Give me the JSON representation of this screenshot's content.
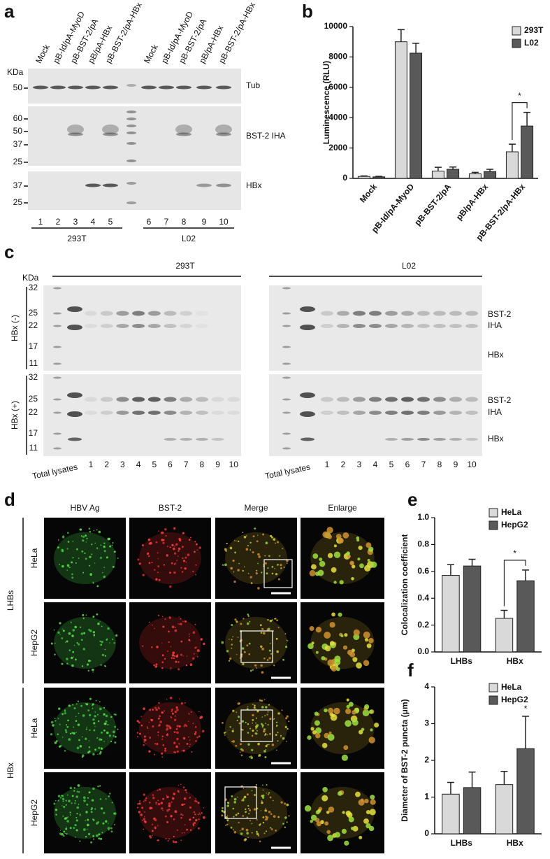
{
  "panel_a": {
    "label": "a",
    "lanes": [
      "Mock",
      "pB-Id/pA-MyoD",
      "pB-BST-2/pA",
      "pB/pA-HBx",
      "pB-BST-2/pA-HBx",
      "Mock",
      "pB-Id/pA-MyoD",
      "pB-BST-2/pA",
      "pB/pA-HBx",
      "pB-BST-2/pA-HBx"
    ],
    "kda": "KDa",
    "blots": [
      {
        "name": "Tub",
        "markers": [
          "50"
        ]
      },
      {
        "name": "BST-2 IHA",
        "markers": [
          "60",
          "50",
          "37",
          "25"
        ]
      },
      {
        "name": "HBx",
        "markers": [
          "37",
          "25"
        ]
      }
    ],
    "lane_numbers": [
      "1",
      "2",
      "3",
      "4",
      "5",
      "6",
      "7",
      "8",
      "9",
      "10"
    ],
    "groups": [
      "293T",
      "L02"
    ]
  },
  "panel_c": {
    "label": "c",
    "groups": [
      "293T",
      "L02"
    ],
    "kda": "KDa",
    "markers": [
      "32",
      "25",
      "22",
      "17",
      "11"
    ],
    "rows": [
      "HBx (-)",
      "HBx (+)"
    ],
    "band_labels": [
      "BST-2",
      "IHA",
      "HBx"
    ],
    "lanes": [
      "Total lysates",
      "1",
      "2",
      "3",
      "4",
      "5",
      "6",
      "7",
      "8",
      "9",
      "10"
    ]
  },
  "panel_d": {
    "label": "d",
    "columns": [
      "HBV Ag",
      "BST-2",
      "Merge",
      "Enlarge"
    ],
    "groups": [
      "LHBs",
      "HBx"
    ],
    "cells": [
      "HeLa",
      "HepG2"
    ]
  },
  "chart_data": [
    {
      "type": "bar",
      "label": "b",
      "y_label": "Luminescence (RLU)",
      "categories": [
        "Mock",
        "pB-Id/pA-MyoD",
        "pB-BST-2/pA",
        "pB/pA-HBx",
        "pB-BST-2/pA-HBx"
      ],
      "series": [
        {
          "name": "293T",
          "color": "#d9d9d9",
          "values": [
            130,
            9000,
            480,
            300,
            1750
          ],
          "errors": [
            30,
            800,
            250,
            100,
            500
          ]
        },
        {
          "name": "L02",
          "color": "#595959",
          "values": [
            100,
            8250,
            600,
            450,
            3450
          ],
          "errors": [
            30,
            650,
            150,
            150,
            900
          ]
        }
      ],
      "ylim": [
        0,
        10000
      ],
      "yticks": [
        0,
        2000,
        4000,
        6000,
        8000,
        10000
      ],
      "legend": "top-right",
      "annotations": [
        {
          "text": "*",
          "category": "pB-BST-2/pA-HBx",
          "bracket": true
        }
      ]
    },
    {
      "type": "bar",
      "label": "e",
      "y_label": "Colocalization coefficient",
      "categories": [
        "LHBs",
        "HBx"
      ],
      "series": [
        {
          "name": "HeLa",
          "color": "#d9d9d9",
          "values": [
            0.57,
            0.25
          ],
          "errors": [
            0.08,
            0.06
          ]
        },
        {
          "name": "HepG2",
          "color": "#595959",
          "values": [
            0.64,
            0.53
          ],
          "errors": [
            0.05,
            0.08
          ]
        }
      ],
      "ylim": [
        0,
        1
      ],
      "yticks": [
        {
          "value": 0,
          "label": "0.0"
        },
        0.2,
        0.4,
        0.6,
        0.8,
        {
          "value": 1,
          "label": "1.0"
        }
      ],
      "legend": "top-right",
      "annotations": [
        {
          "text": "*",
          "category": "HBx",
          "bracket": true
        }
      ]
    },
    {
      "type": "bar",
      "label": "f",
      "y_label": "Diameter of BST-2 puncta (μm)",
      "categories": [
        "LHBs",
        "HBx"
      ],
      "series": [
        {
          "name": "HeLa",
          "color": "#d9d9d9",
          "values": [
            1.08,
            1.34
          ],
          "errors": [
            0.32,
            0.36
          ]
        },
        {
          "name": "HepG2",
          "color": "#595959",
          "values": [
            1.26,
            2.32
          ],
          "errors": [
            0.42,
            0.88
          ]
        }
      ],
      "ylim": [
        0,
        4
      ],
      "yticks": [
        0,
        1,
        2,
        3,
        4
      ],
      "legend": "top-right",
      "annotations": [
        {
          "text": "*",
          "category": "HBx",
          "series": "HepG2"
        }
      ]
    }
  ]
}
